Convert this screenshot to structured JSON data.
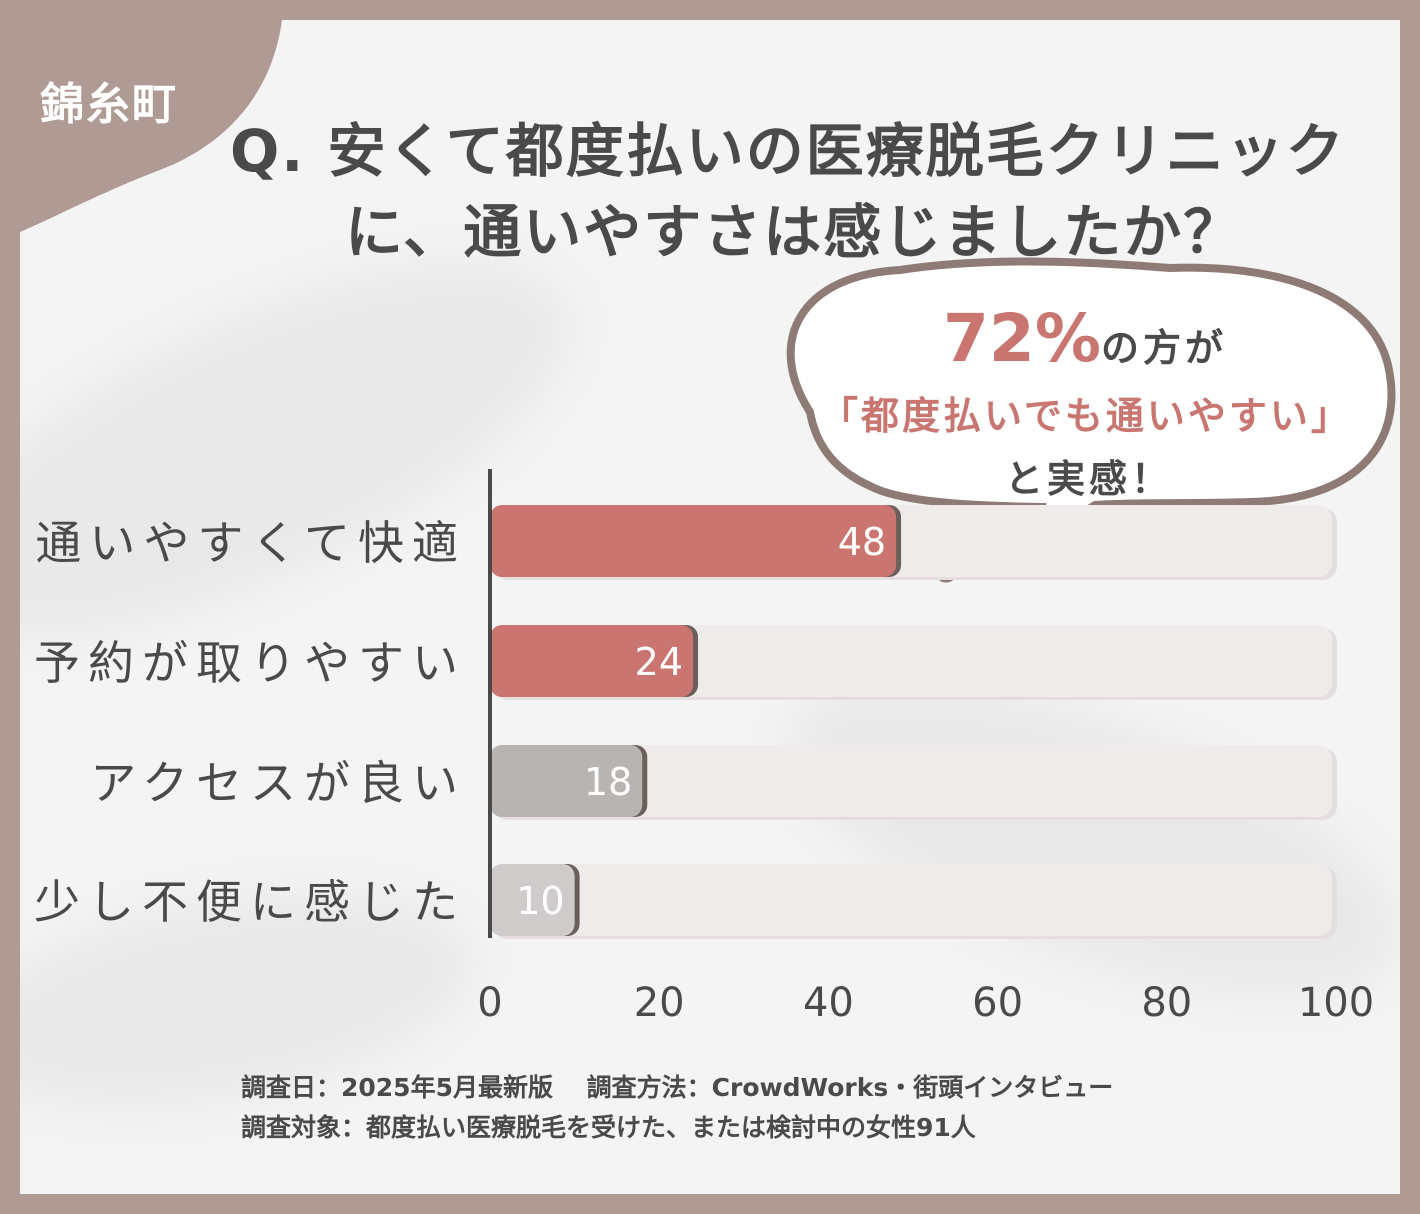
{
  "location": "錦糸町",
  "title": {
    "line1": "Q. 安くて都度払いの医療脱毛クリニック",
    "line2": "に、通いやすさは感じましたか？"
  },
  "callout": {
    "percent": "72%",
    "percent_suffix": "の方が",
    "quote": "「都度払いでも通いやすい」",
    "closing": "と実感！"
  },
  "chart_data": {
    "type": "bar",
    "orientation": "horizontal",
    "categories": [
      "通いやすくて快適",
      "予約が取りやすい",
      "アクセスが良い",
      "少し不便に感じた"
    ],
    "values": [
      48,
      24,
      18,
      10
    ],
    "bar_colors": [
      "#cb7570",
      "#cb7570",
      "#b8b4b2",
      "#cfcbca"
    ],
    "xlim": [
      0,
      100
    ],
    "xticks": [
      "0",
      "20",
      "40",
      "60",
      "80",
      "100"
    ],
    "grid": false
  },
  "footnote": {
    "line1": "調査日：2025年5月最新版　 調査方法：CrowdWorks・街頭インタビュー",
    "line2": "調査対象：都度払い医療脱毛を受けた、または検討中の女性91人"
  },
  "colors": {
    "frame": "#b09a94",
    "background": "#f5f4f4",
    "accent": "#c97570",
    "text": "#4a4a4a",
    "track": "#efebea"
  }
}
